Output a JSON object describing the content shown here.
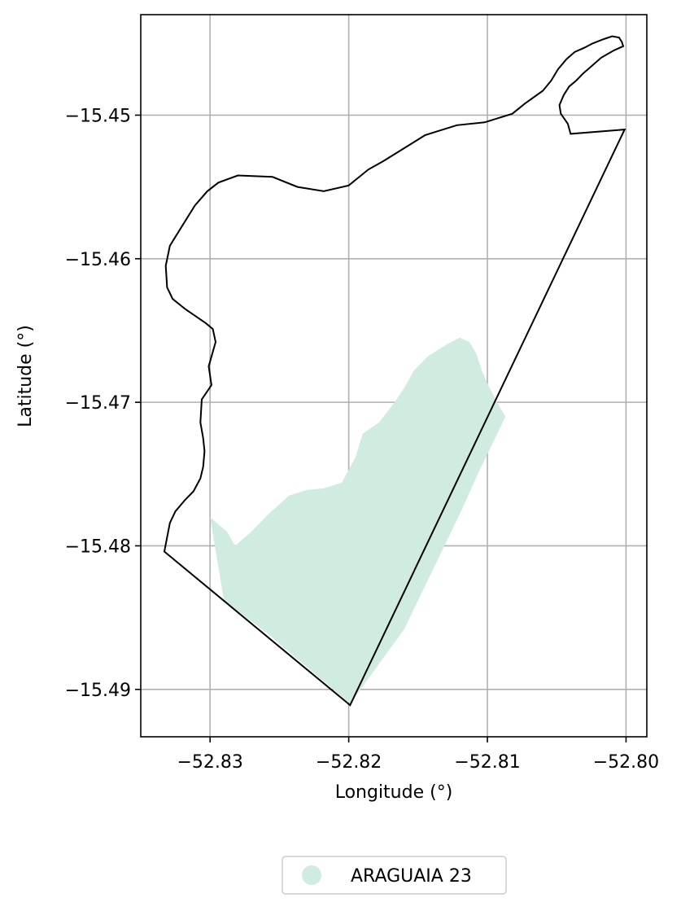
{
  "map": {
    "xlabel": "Longitude (°)",
    "ylabel": "Latitude (°)",
    "grid": true,
    "colors": {
      "boundary": "#000000",
      "fill": "#d0ebdf",
      "grid": "#b0b0b0"
    },
    "xlim": [
      -52.835,
      -52.7985
    ],
    "ylim": [
      -15.4933,
      -15.443
    ],
    "x_ticks": [
      {
        "value": -52.83,
        "label": "−52.83"
      },
      {
        "value": -52.82,
        "label": "−52.82"
      },
      {
        "value": -52.81,
        "label": "−52.81"
      },
      {
        "value": -52.8,
        "label": "−52.80"
      }
    ],
    "y_ticks": [
      {
        "value": -15.45,
        "label": "−15.45"
      },
      {
        "value": -15.46,
        "label": "−15.46"
      },
      {
        "value": -15.47,
        "label": "−15.47"
      },
      {
        "value": -15.48,
        "label": "−15.48"
      },
      {
        "value": -15.49,
        "label": "−15.49"
      }
    ],
    "boundary_outline": [
      [
        -52.8333,
        -15.4804
      ],
      [
        -52.8329,
        -15.4784
      ],
      [
        -52.8327,
        -15.478
      ],
      [
        -52.8325,
        -15.4776
      ],
      [
        -52.8318,
        -15.4768
      ],
      [
        -52.8312,
        -15.4762
      ],
      [
        -52.8307,
        -15.4753
      ],
      [
        -52.8305,
        -15.4745
      ],
      [
        -52.8304,
        -15.4734
      ],
      [
        -52.8305,
        -15.4725
      ],
      [
        -52.8307,
        -15.4714
      ],
      [
        -52.8306,
        -15.4698
      ],
      [
        -52.8299,
        -15.4688
      ],
      [
        -52.8301,
        -15.4675
      ],
      [
        -52.8296,
        -15.4658
      ],
      [
        -52.8298,
        -15.4649
      ],
      [
        -52.8303,
        -15.4645
      ],
      [
        -52.8318,
        -15.4635
      ],
      [
        -52.8327,
        -15.4628
      ],
      [
        -52.8331,
        -15.462
      ],
      [
        -52.8332,
        -15.4605
      ],
      [
        -52.8329,
        -15.4591
      ],
      [
        -52.832,
        -15.4577
      ],
      [
        -52.8311,
        -15.4563
      ],
      [
        -52.8302,
        -15.4553
      ],
      [
        -52.8294,
        -15.4547
      ],
      [
        -52.828,
        -15.4542
      ],
      [
        -52.8255,
        -15.4543
      ],
      [
        -52.8237,
        -15.455
      ],
      [
        -52.8218,
        -15.4553
      ],
      [
        -52.82,
        -15.4549
      ],
      [
        -52.8186,
        -15.4538
      ],
      [
        -52.8175,
        -15.4532
      ],
      [
        -52.816,
        -15.4523
      ],
      [
        -52.8145,
        -15.4514
      ],
      [
        -52.8122,
        -15.4507
      ],
      [
        -52.8102,
        -15.4505
      ],
      [
        -52.8082,
        -15.4499
      ],
      [
        -52.8073,
        -15.4492
      ],
      [
        -52.806,
        -15.4483
      ],
      [
        -52.8054,
        -15.4476
      ],
      [
        -52.8049,
        -15.4468
      ],
      [
        -52.8043,
        -15.4461
      ],
      [
        -52.8037,
        -15.4456
      ],
      [
        -52.803,
        -15.4453
      ],
      [
        -52.8024,
        -15.445
      ],
      [
        -52.8016,
        -15.4447
      ],
      [
        -52.801,
        -15.4445
      ],
      [
        -52.8005,
        -15.4446
      ],
      [
        -52.8003,
        -15.4449
      ],
      [
        -52.8002,
        -15.4452
      ],
      [
        -52.8009,
        -15.4455
      ],
      [
        -52.8018,
        -15.446
      ],
      [
        -52.8025,
        -15.4466
      ],
      [
        -52.8031,
        -15.4471
      ],
      [
        -52.8036,
        -15.4476
      ],
      [
        -52.8041,
        -15.448
      ],
      [
        -52.8045,
        -15.4486
      ],
      [
        -52.8048,
        -15.4493
      ],
      [
        -52.8047,
        -15.4499
      ],
      [
        -52.8042,
        -15.4506
      ],
      [
        -52.804,
        -15.4513
      ],
      [
        -52.8001,
        -15.451
      ],
      [
        -52.8199,
        -15.4911
      ],
      [
        -52.8333,
        -15.4804
      ]
    ],
    "regions": [
      {
        "name": "ARAGUAIA 23",
        "polygon": [
          [
            -52.83,
            -15.478
          ],
          [
            -52.8288,
            -15.479
          ],
          [
            -52.8282,
            -15.48
          ],
          [
            -52.827,
            -15.479
          ],
          [
            -52.8258,
            -15.4778
          ],
          [
            -52.8243,
            -15.4765
          ],
          [
            -52.823,
            -15.4761
          ],
          [
            -52.8218,
            -15.476
          ],
          [
            -52.8205,
            -15.4756
          ],
          [
            -52.8195,
            -15.4738
          ],
          [
            -52.819,
            -15.4722
          ],
          [
            -52.8178,
            -15.4714
          ],
          [
            -52.8167,
            -15.47
          ],
          [
            -52.816,
            -15.469
          ],
          [
            -52.8153,
            -15.4678
          ],
          [
            -52.8143,
            -15.4668
          ],
          [
            -52.813,
            -15.466
          ],
          [
            -52.812,
            -15.4655
          ],
          [
            -52.8113,
            -15.4658
          ],
          [
            -52.8108,
            -15.4666
          ],
          [
            -52.8104,
            -15.4678
          ],
          [
            -52.8099,
            -15.4689
          ],
          [
            -52.8093,
            -15.47
          ],
          [
            -52.8087,
            -15.471
          ],
          [
            -52.8105,
            -15.4746
          ],
          [
            -52.812,
            -15.4778
          ],
          [
            -52.814,
            -15.4818
          ],
          [
            -52.816,
            -15.4858
          ],
          [
            -52.8199,
            -15.491
          ],
          [
            -52.826,
            -15.486
          ],
          [
            -52.829,
            -15.4838
          ],
          [
            -52.83,
            -15.478
          ]
        ]
      }
    ],
    "legend": {
      "position": "bottom-center",
      "items": [
        {
          "label": "ARAGUAIA 23",
          "color": "#d0ebdf"
        }
      ]
    }
  }
}
